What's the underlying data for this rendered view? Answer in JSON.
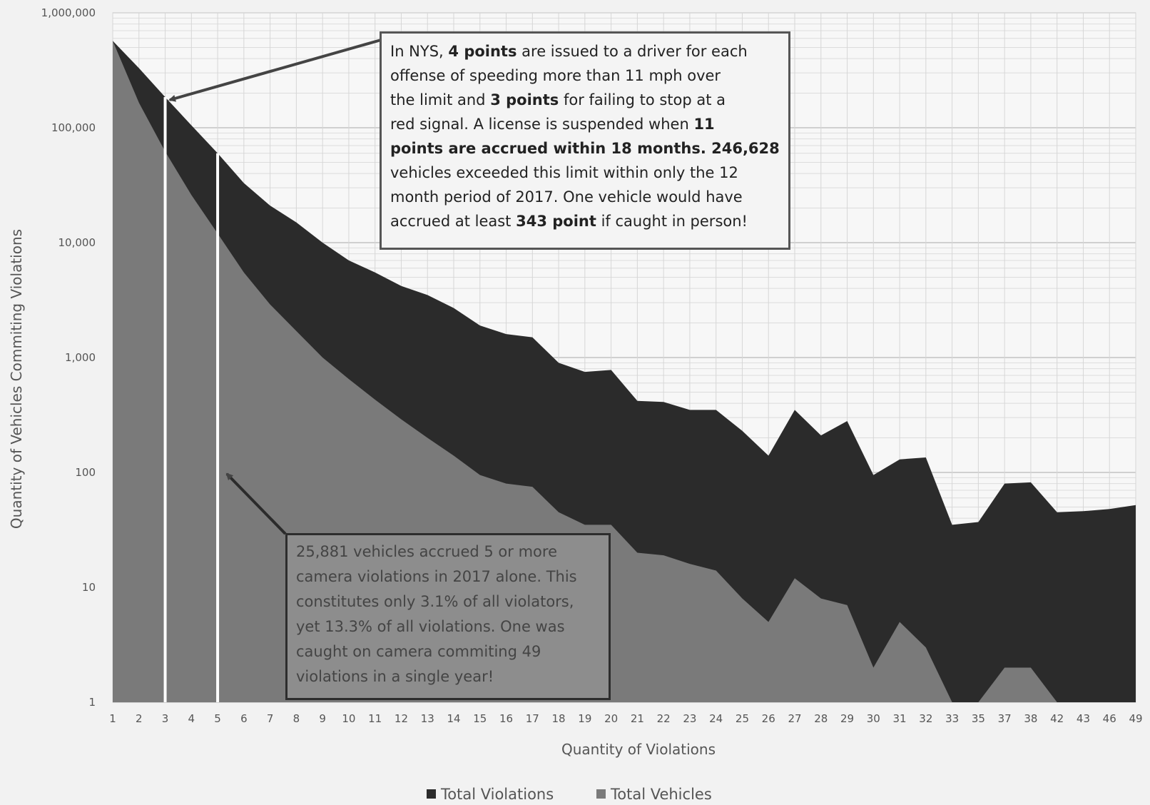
{
  "chart_data": {
    "type": "area",
    "xlabel": "Quantity of Violations",
    "ylabel": "Quantity of Vehicles Commiting Violations",
    "y_scale": "log",
    "ylim": [
      1,
      1000000
    ],
    "y_ticks": [
      "1",
      "10",
      "100",
      "1,000",
      "10,000",
      "100,000",
      "1,000,000"
    ],
    "categories": [
      "1",
      "2",
      "3",
      "4",
      "5",
      "6",
      "7",
      "8",
      "9",
      "10",
      "11",
      "12",
      "13",
      "14",
      "15",
      "16",
      "17",
      "18",
      "19",
      "20",
      "21",
      "22",
      "23",
      "24",
      "25",
      "26",
      "27",
      "28",
      "29",
      "30",
      "31",
      "32",
      "33",
      "35",
      "37",
      "38",
      "42",
      "43",
      "46",
      "49"
    ],
    "series": [
      {
        "name": "Total Violations",
        "color": "#2b2b2b",
        "values": [
          570000,
          330000,
          185000,
          105000,
          60000,
          33000,
          21000,
          15000,
          10000,
          7000,
          5500,
          4200,
          3500,
          2700,
          1900,
          1600,
          1500,
          900,
          750,
          780,
          420,
          410,
          350,
          350,
          230,
          140,
          350,
          210,
          280,
          95,
          130,
          135,
          35,
          37,
          80,
          82,
          45,
          46,
          48,
          52
        ]
      },
      {
        "name": "Total Vehicles",
        "color": "#7a7a7a",
        "values": [
          570000,
          165000,
          62000,
          26000,
          12000,
          5500,
          2900,
          1700,
          1000,
          650,
          430,
          290,
          200,
          140,
          95,
          80,
          75,
          45,
          35,
          35,
          20,
          19,
          16,
          14,
          8,
          5,
          12,
          8,
          7,
          2,
          5,
          3,
          1,
          1,
          2,
          2,
          1,
          1,
          1,
          1
        ]
      }
    ],
    "annotations": [
      "In NYS, 4 points are issued to a driver for each offense of speeding more than 11 mph over the limit and 3 points for failing to stop at a red signal. A license is suspended when 11 points are accrued within 18 months. 246,628 vehicles exceeded this limit within only the 12 month period of 2017. One vehicle would have accrued at least 343 point if caught in person!",
      "25,881 vehicles accrued 5 or more camera violations in 2017 alone. This constitutes only 3.1% of all violators, yet 13.3% of all violations. One was caught on camera commiting 49 violations in a single year!"
    ],
    "grid": true,
    "legend": "bottom"
  },
  "annotation_top_lines": [
    [
      {
        "t": "In NYS, "
      },
      {
        "t": "4 points",
        "b": true
      },
      {
        "t": " are issued to a driver for each"
      }
    ],
    [
      {
        "t": "offense of speeding more than 11 mph over"
      }
    ],
    [
      {
        "t": "the limit and "
      },
      {
        "t": "3 points",
        "b": true
      },
      {
        "t": " for failing to stop at a"
      }
    ],
    [
      {
        "t": "red signal. A license is suspended when "
      },
      {
        "t": "11",
        "b": true
      }
    ],
    [
      {
        "t": "points are accrued within 18 months. 246,628",
        "b": true
      }
    ],
    [
      {
        "t": "vehicles exceeded this limit within only the 12"
      }
    ],
    [
      {
        "t": "month period of 2017. One vehicle would have"
      }
    ],
    [
      {
        "t": "accrued at least "
      },
      {
        "t": "343 point",
        "b": true
      },
      {
        "t": " if caught in person!"
      }
    ]
  ],
  "annotation_bottom_lines": [
    "25,881 vehicles accrued 5 or more",
    "camera violations in 2017 alone. This",
    "constitutes only 3.1% of all violators,",
    "yet 13.3% of all violations. One was",
    "caught on camera commiting 49",
    "violations in a single year!"
  ]
}
